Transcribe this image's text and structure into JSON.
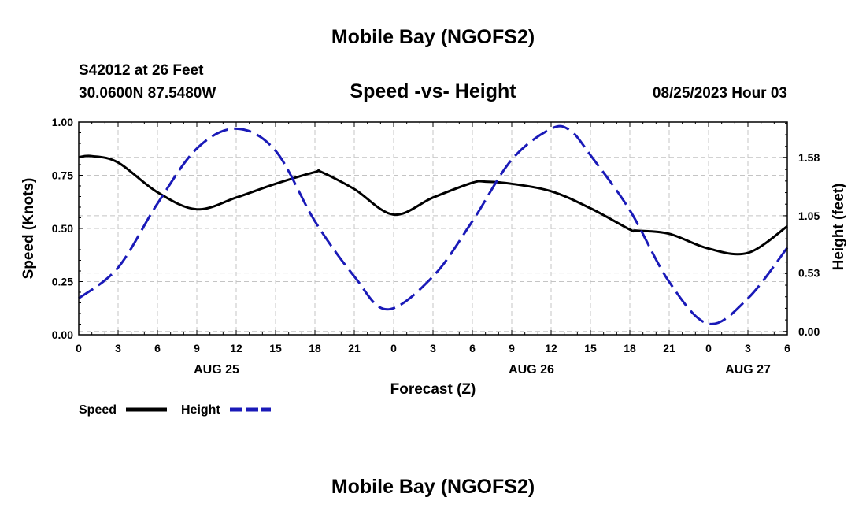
{
  "header": {
    "title_top": "Mobile Bay (NGOFS2)",
    "station": "S42012 at 26 Feet",
    "coords": "30.0600N  87.5480W",
    "plot_title": "Speed -vs- Height",
    "datetime": "08/25/2023 Hour 03",
    "title_bottom": "Mobile Bay (NGOFS2)"
  },
  "chart_data": {
    "type": "line",
    "title": "Speed -vs- Height",
    "xlabel": "Forecast (Z)",
    "ylabel": "Speed (Knots)",
    "y2label": "Height (feet)",
    "x_range_hours": [
      0,
      54
    ],
    "x_tick_labels": [
      "0",
      "3",
      "6",
      "9",
      "12",
      "15",
      "18",
      "21",
      "0",
      "3",
      "6",
      "9",
      "12",
      "15",
      "18",
      "21",
      "0",
      "3",
      "6"
    ],
    "day_labels": [
      {
        "label": "AUG 25",
        "hour": 10.5
      },
      {
        "label": "AUG 26",
        "hour": 34.5
      },
      {
        "label": "AUG 27",
        "hour": 51
      }
    ],
    "ylim": [
      0,
      1
    ],
    "y_ticks": [
      0,
      0.25,
      0.5,
      0.75,
      1
    ],
    "y_tick_labels": [
      "0.00",
      "0.25",
      "0.50",
      "0.75",
      "1.00"
    ],
    "y2lim": [
      -0.03,
      1.9
    ],
    "y2_ticks": [
      0,
      0.53,
      1.05,
      1.58
    ],
    "y2_tick_labels": [
      "0.00",
      "0.53",
      "1.05",
      "1.58"
    ],
    "grid": true,
    "legend_position": "bottom-left",
    "series": [
      {
        "name": "Speed",
        "axis": "left",
        "color": "#000000",
        "dash": "solid",
        "x": [
          0,
          1,
          3,
          6,
          9,
          12,
          15,
          18,
          18.5,
          21,
          24,
          27,
          30,
          31,
          33,
          36,
          39,
          42,
          42.5,
          45,
          48,
          51,
          54
        ],
        "values": [
          0.835,
          0.84,
          0.81,
          0.67,
          0.59,
          0.645,
          0.71,
          0.765,
          0.765,
          0.685,
          0.565,
          0.645,
          0.715,
          0.72,
          0.71,
          0.675,
          0.595,
          0.495,
          0.49,
          0.475,
          0.405,
          0.385,
          0.51
        ]
      },
      {
        "name": "Height",
        "axis": "right",
        "color": "#1a1ab8",
        "dash": "dashed",
        "x": [
          0,
          3,
          6,
          9,
          12,
          15,
          18,
          21,
          23.5,
          27,
          30,
          33,
          36,
          37.5,
          39,
          42,
          45,
          48,
          51,
          54
        ],
        "values": [
          0.3,
          0.58,
          1.16,
          1.66,
          1.84,
          1.64,
          1.0,
          0.5,
          0.2,
          0.5,
          1.0,
          1.56,
          1.84,
          1.82,
          1.6,
          1.1,
          0.45,
          0.07,
          0.3,
          0.76
        ]
      }
    ]
  }
}
